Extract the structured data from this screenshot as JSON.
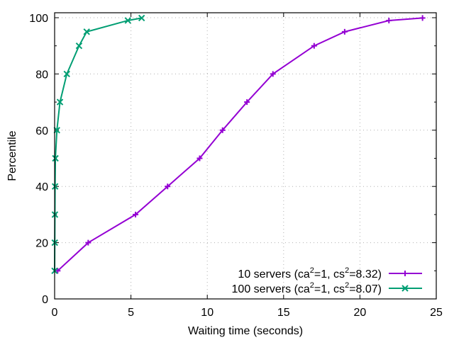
{
  "chart_data": {
    "type": "line",
    "title": "",
    "xlabel": "Waiting time (seconds)",
    "ylabel": "Percentile",
    "xlim": [
      0,
      25
    ],
    "ylim": [
      0,
      100
    ],
    "xticks": [
      0,
      5,
      10,
      15,
      20,
      25
    ],
    "yticks": [
      0,
      20,
      40,
      60,
      80,
      100
    ],
    "grid": true,
    "legend_position": "bottom-right",
    "series": [
      {
        "name": "10 servers (ca²=1, cs²=8.32)",
        "label_prefix": "10 servers (ca",
        "label_mid": "=1, cs",
        "label_suffix": "=8.32)",
        "color": "#9400d3",
        "marker": "plus",
        "x": [
          0.2,
          2.2,
          5.3,
          7.4,
          9.5,
          11.0,
          12.6,
          14.3,
          17.0,
          19.0,
          21.9,
          24.1
        ],
        "y": [
          10,
          20,
          30,
          40,
          50,
          60,
          70,
          80,
          90,
          95,
          99,
          99.9
        ]
      },
      {
        "name": "100 servers (ca²=1, cs²=8.07)",
        "label_prefix": "100 servers (ca",
        "label_mid": "=1, cs",
        "label_suffix": "=8.07)",
        "color": "#009e73",
        "marker": "cross",
        "x": [
          0.0,
          0.01,
          0.02,
          0.03,
          0.05,
          0.15,
          0.35,
          0.8,
          1.6,
          2.1,
          4.8,
          5.7
        ],
        "y": [
          10,
          20,
          30,
          40,
          50,
          60,
          70,
          80,
          90,
          95,
          99,
          99.9
        ]
      }
    ]
  }
}
